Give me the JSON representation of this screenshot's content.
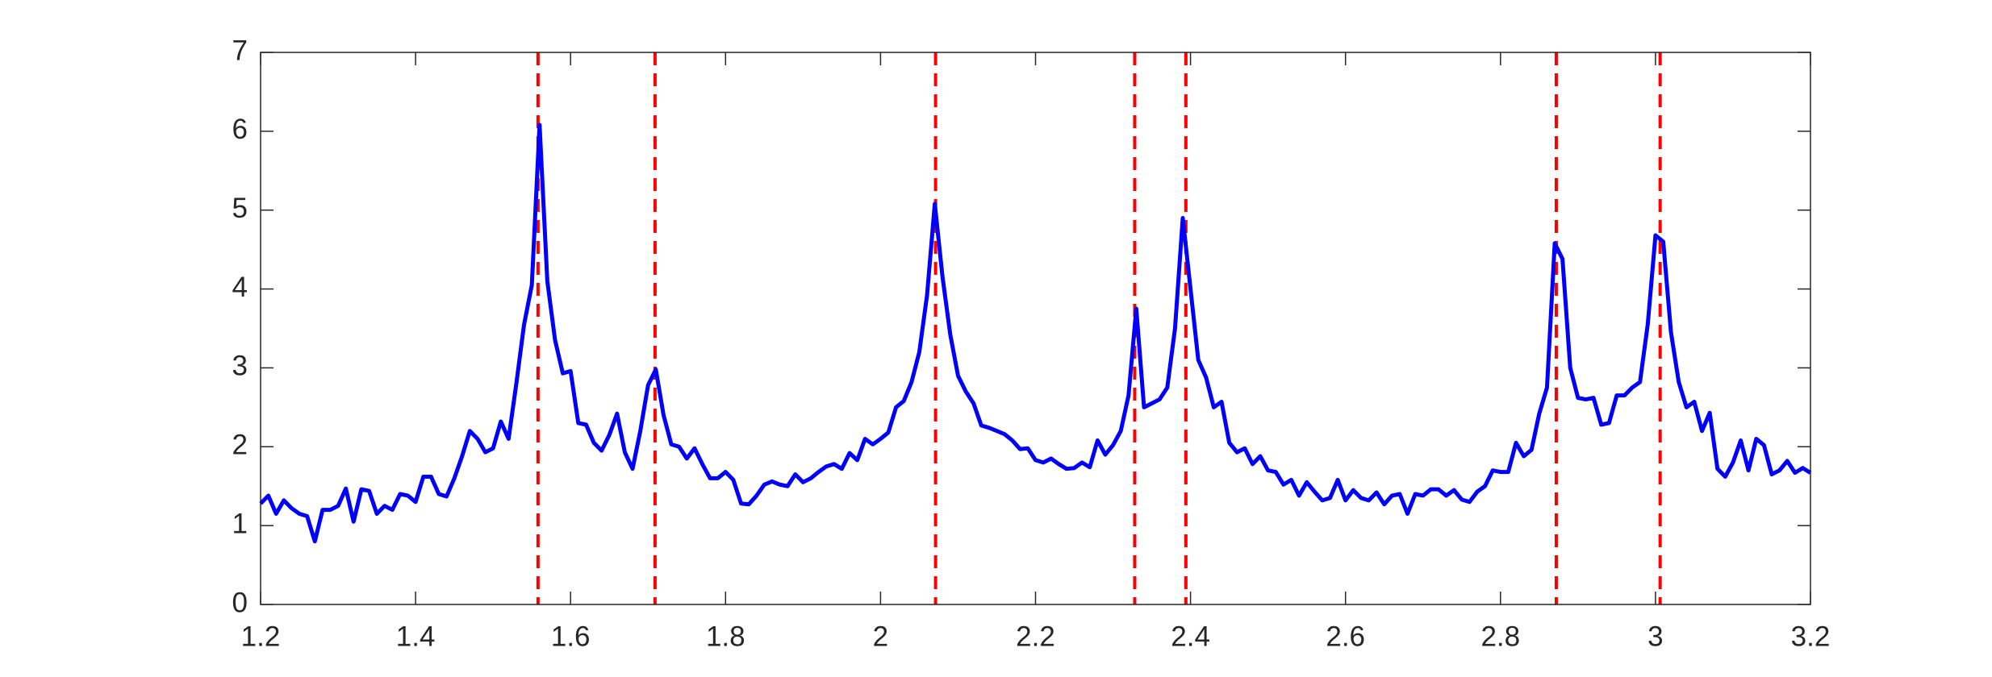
{
  "chart_data": {
    "type": "line",
    "x": [
      1.2,
      1.21,
      1.22,
      1.23,
      1.24,
      1.25,
      1.26,
      1.27,
      1.28,
      1.29,
      1.3,
      1.31,
      1.32,
      1.33,
      1.34,
      1.35,
      1.36,
      1.37,
      1.38,
      1.39,
      1.4,
      1.41,
      1.42,
      1.43,
      1.44,
      1.45,
      1.46,
      1.47,
      1.48,
      1.49,
      1.5,
      1.51,
      1.52,
      1.53,
      1.54,
      1.55,
      1.56,
      1.57,
      1.58,
      1.59,
      1.6,
      1.61,
      1.62,
      1.63,
      1.64,
      1.65,
      1.66,
      1.67,
      1.68,
      1.69,
      1.7,
      1.71,
      1.72,
      1.73,
      1.74,
      1.75,
      1.76,
      1.77,
      1.78,
      1.79,
      1.8,
      1.81,
      1.82,
      1.83,
      1.84,
      1.85,
      1.86,
      1.87,
      1.88,
      1.89,
      1.9,
      1.91,
      1.92,
      1.93,
      1.94,
      1.95,
      1.96,
      1.97,
      1.98,
      1.99,
      2.0,
      2.01,
      2.02,
      2.03,
      2.04,
      2.05,
      2.06,
      2.07,
      2.08,
      2.09,
      2.1,
      2.11,
      2.12,
      2.13,
      2.14,
      2.15,
      2.16,
      2.17,
      2.18,
      2.19,
      2.2,
      2.21,
      2.22,
      2.23,
      2.24,
      2.25,
      2.26,
      2.27,
      2.28,
      2.29,
      2.3,
      2.31,
      2.32,
      2.33,
      2.34,
      2.35,
      2.36,
      2.37,
      2.38,
      2.39,
      2.4,
      2.41,
      2.42,
      2.43,
      2.44,
      2.45,
      2.46,
      2.47,
      2.48,
      2.49,
      2.5,
      2.51,
      2.52,
      2.53,
      2.54,
      2.55,
      2.56,
      2.57,
      2.58,
      2.59,
      2.6,
      2.61,
      2.62,
      2.63,
      2.64,
      2.65,
      2.66,
      2.67,
      2.68,
      2.69,
      2.7,
      2.71,
      2.72,
      2.73,
      2.74,
      2.75,
      2.76,
      2.77,
      2.78,
      2.79,
      2.8,
      2.81,
      2.82,
      2.83,
      2.84,
      2.85,
      2.86,
      2.87,
      2.88,
      2.89,
      2.9,
      2.91,
      2.92,
      2.93,
      2.94,
      2.95,
      2.96,
      2.97,
      2.98,
      2.99,
      3.0,
      3.01,
      3.02,
      3.03,
      3.04,
      3.05,
      3.06,
      3.07,
      3.08,
      3.09,
      3.1,
      3.11,
      3.12,
      3.13,
      3.14,
      3.15,
      3.16,
      3.17,
      3.18,
      3.19,
      3.2
    ],
    "series": [
      {
        "color": "#0000ff",
        "values": [
          1.28,
          1.38,
          1.15,
          1.32,
          1.22,
          1.15,
          1.12,
          0.8,
          1.2,
          1.2,
          1.25,
          1.47,
          1.05,
          1.46,
          1.44,
          1.15,
          1.25,
          1.2,
          1.4,
          1.38,
          1.3,
          1.62,
          1.62,
          1.4,
          1.37,
          1.6,
          1.88,
          2.2,
          2.1,
          1.93,
          1.98,
          2.32,
          2.1,
          2.8,
          3.55,
          4.05,
          6.08,
          4.1,
          3.35,
          2.93,
          2.96,
          2.3,
          2.28,
          2.05,
          1.95,
          2.15,
          2.42,
          1.93,
          1.72,
          2.2,
          2.78,
          2.98,
          2.4,
          2.03,
          2.0,
          1.85,
          1.98,
          1.78,
          1.6,
          1.6,
          1.68,
          1.58,
          1.28,
          1.27,
          1.38,
          1.52,
          1.56,
          1.52,
          1.5,
          1.65,
          1.55,
          1.6,
          1.68,
          1.75,
          1.78,
          1.72,
          1.92,
          1.83,
          2.1,
          2.03,
          2.1,
          2.18,
          2.5,
          2.58,
          2.82,
          3.2,
          3.92,
          5.08,
          4.15,
          3.42,
          2.9,
          2.7,
          2.55,
          2.27,
          2.24,
          2.2,
          2.16,
          2.08,
          1.97,
          1.98,
          1.83,
          1.8,
          1.85,
          1.78,
          1.72,
          1.73,
          1.8,
          1.74,
          2.08,
          1.9,
          2.02,
          2.2,
          2.65,
          3.75,
          2.5,
          2.55,
          2.6,
          2.75,
          3.5,
          4.9,
          4.0,
          3.1,
          2.88,
          2.5,
          2.57,
          2.05,
          1.93,
          1.98,
          1.78,
          1.88,
          1.7,
          1.68,
          1.52,
          1.58,
          1.38,
          1.55,
          1.43,
          1.32,
          1.35,
          1.58,
          1.32,
          1.45,
          1.35,
          1.32,
          1.42,
          1.27,
          1.38,
          1.4,
          1.15,
          1.4,
          1.38,
          1.46,
          1.46,
          1.38,
          1.45,
          1.33,
          1.3,
          1.43,
          1.5,
          1.7,
          1.68,
          1.68,
          2.05,
          1.88,
          1.96,
          2.42,
          2.75,
          4.58,
          4.38,
          3.0,
          2.62,
          2.6,
          2.62,
          2.28,
          2.3,
          2.65,
          2.65,
          2.75,
          2.82,
          3.55,
          4.68,
          4.6,
          3.45,
          2.82,
          2.5,
          2.57,
          2.2,
          2.43,
          1.72,
          1.62,
          1.8,
          2.08,
          1.7,
          2.1,
          2.02,
          1.65,
          1.7,
          1.82,
          1.67,
          1.73,
          1.67
        ]
      }
    ],
    "vlines": {
      "color": "#ff0000",
      "x": [
        1.558,
        1.709,
        2.071,
        2.328,
        2.394,
        2.872,
        3.006
      ]
    },
    "xlim": [
      1.2,
      3.2
    ],
    "xticks": [
      1.2,
      1.4,
      1.6,
      1.8,
      2,
      2.2,
      2.4,
      2.6,
      2.8,
      3,
      3.2
    ],
    "ylim": [
      0,
      7
    ],
    "yticks": [
      0,
      1,
      2,
      3,
      4,
      5,
      6,
      7
    ],
    "grid": false
  }
}
